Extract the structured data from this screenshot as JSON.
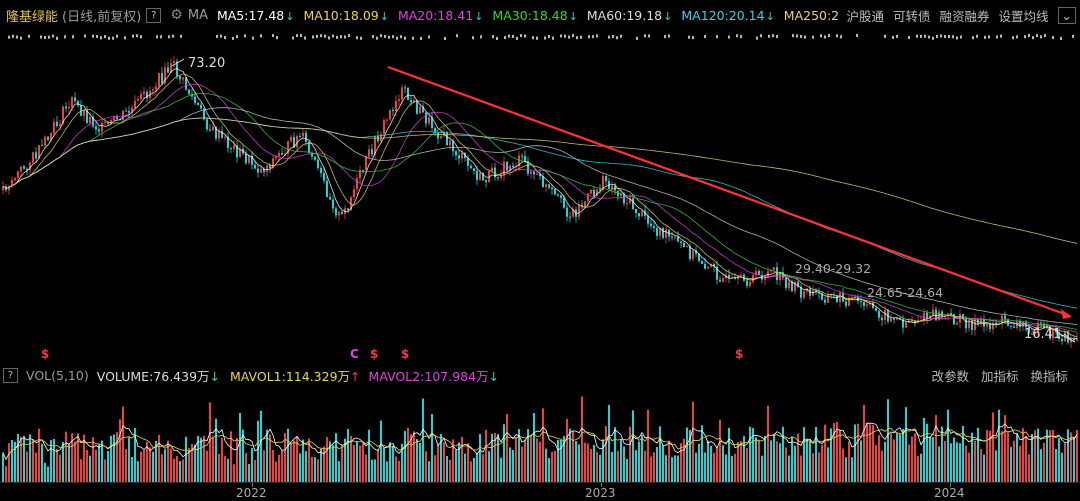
{
  "header": {
    "stock_name": "隆基绿能",
    "period": "(日线,前复权)",
    "help": "?",
    "gear": "⚙",
    "ma_title": "MA",
    "ma": [
      {
        "label": "MA5:17.48",
        "color": "#ffffff",
        "arrow": "↓"
      },
      {
        "label": "MA10:18.09",
        "color": "#e8d84a",
        "arrow": "↓"
      },
      {
        "label": "MA20:18.41",
        "color": "#e040e0",
        "arrow": "↓"
      },
      {
        "label": "MA30:18.48",
        "color": "#3ccf3c",
        "arrow": "↓"
      },
      {
        "label": "MA60:19.18",
        "color": "#dddddd",
        "arrow": "↓"
      },
      {
        "label": "MA120:20.14",
        "color": "#33d4e8",
        "arrow": "↓"
      },
      {
        "label": "MA250:2",
        "color": "#e8d084",
        "arrow": ""
      }
    ],
    "right_menu": [
      "沪股通",
      "可转债",
      "融资融券",
      "设置均线"
    ],
    "expand_icon": "⌄"
  },
  "price_chart": {
    "annotations": {
      "high": "73.20",
      "range1": "29.40-29.32",
      "range2": "24.65-24.64",
      "low": "16.41"
    },
    "markers": [
      {
        "symbol": "$"
      },
      {
        "symbol": "C"
      },
      {
        "symbol": "$"
      },
      {
        "symbol": "$"
      },
      {
        "symbol": "$"
      }
    ]
  },
  "volume_header": {
    "help": "?",
    "title": "VOL(5,10)",
    "volume": "VOLUME:76.439万",
    "mavol1": "MAVOL1:114.329万",
    "mavol2": "MAVOL2:107.984万",
    "arrow_down": "↓",
    "arrow_up": "↑",
    "right_menu": [
      "改参数",
      "加指标",
      "换指标"
    ]
  },
  "xaxis": {
    "labels": [
      "2022",
      "2023",
      "2024"
    ]
  },
  "colors": {
    "up": "#ee4040",
    "down": "#22d3d3",
    "trendline": "#ff3333",
    "high_label": "#dddddd",
    "marker": "#ff3344"
  }
}
